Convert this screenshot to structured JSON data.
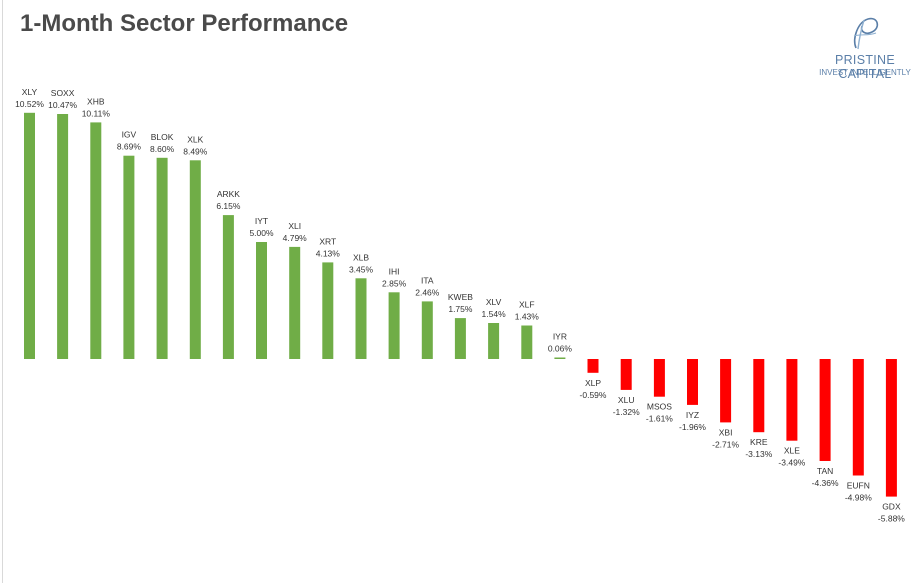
{
  "title": "1-Month Sector Performance",
  "logo": {
    "name": "PRISTINE CAPITAL",
    "tagline": "INVEST INTELLIGENTLY"
  },
  "colors": {
    "positive": "#70ad47",
    "negative": "#ff0000",
    "title": "#4a4a4a",
    "brand": "#5b7fa8"
  },
  "chart_data": {
    "type": "bar",
    "title": "1-Month Sector Performance",
    "xlabel": "",
    "ylabel": "",
    "grid": false,
    "categories": [
      "XLY",
      "SOXX",
      "XHB",
      "IGV",
      "BLOK",
      "XLK",
      "ARKK",
      "IYT",
      "XLI",
      "XRT",
      "XLB",
      "IHI",
      "ITA",
      "KWEB",
      "XLV",
      "XLF",
      "IYR",
      "XLP",
      "XLU",
      "MSOS",
      "IYZ",
      "XBI",
      "KRE",
      "XLE",
      "TAN",
      "EUFN",
      "GDX"
    ],
    "values": [
      10.52,
      10.47,
      10.11,
      8.69,
      8.6,
      8.49,
      6.15,
      5.0,
      4.79,
      4.13,
      3.45,
      2.85,
      2.46,
      1.75,
      1.54,
      1.43,
      0.06,
      -0.59,
      -1.32,
      -1.61,
      -1.96,
      -2.71,
      -3.13,
      -3.49,
      -4.36,
      -4.98,
      -5.88
    ],
    "labels": [
      "10.52%",
      "10.47%",
      "10.11%",
      "8.69%",
      "8.60%",
      "8.49%",
      "6.15%",
      "5.00%",
      "4.79%",
      "4.13%",
      "3.45%",
      "2.85%",
      "2.46%",
      "1.75%",
      "1.54%",
      "1.43%",
      "0.06%",
      "-0.59%",
      "-1.32%",
      "-1.61%",
      "-1.96%",
      "-2.71%",
      "-3.13%",
      "-3.49%",
      "-4.36%",
      "-4.98%",
      "-5.88%"
    ]
  }
}
